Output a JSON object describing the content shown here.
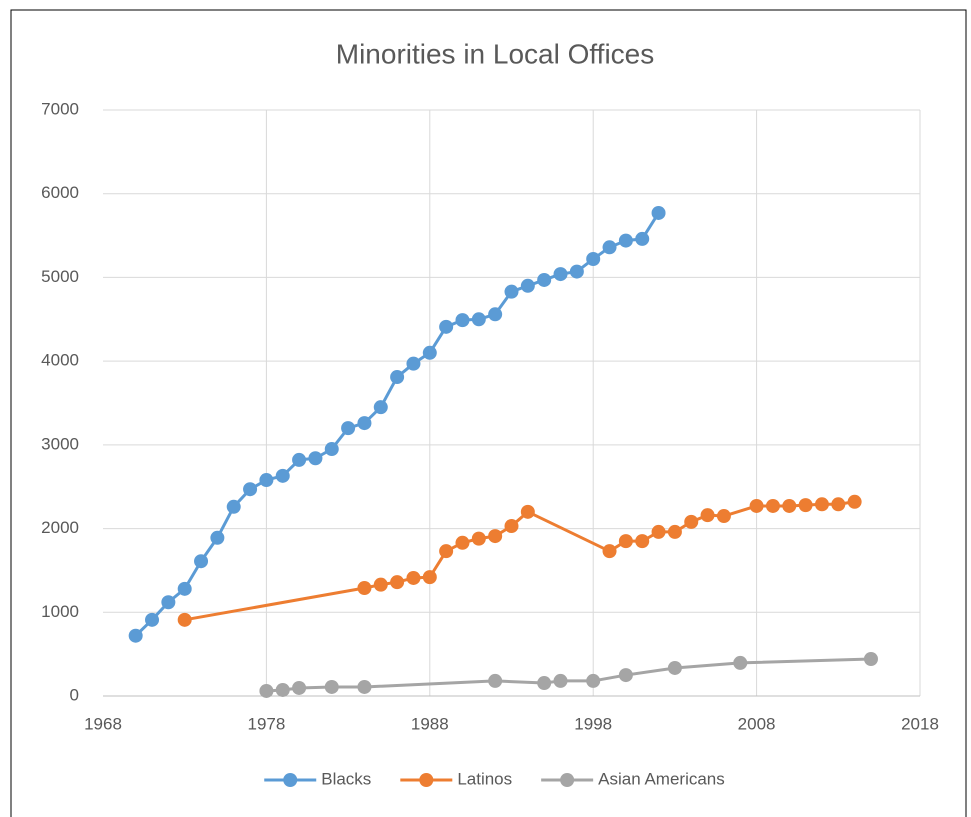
{
  "chart_data": {
    "type": "line",
    "title": "Minorities in Local Offices",
    "xlim": [
      1968,
      2018
    ],
    "xticks": [
      1968,
      1978,
      1988,
      1998,
      2008,
      2018
    ],
    "ylim": [
      0,
      7000
    ],
    "yticks": [
      0,
      1000,
      2000,
      3000,
      4000,
      5000,
      6000,
      7000
    ],
    "grid": true,
    "legend": "bottom",
    "series": [
      {
        "name": "Blacks",
        "color": "#5b9bd5",
        "x": [
          1970,
          1971,
          1972,
          1973,
          1974,
          1975,
          1976,
          1977,
          1978,
          1979,
          1980,
          1981,
          1982,
          1983,
          1984,
          1985,
          1986,
          1987,
          1988,
          1989,
          1990,
          1991,
          1992,
          1993,
          1994,
          1995,
          1996,
          1997,
          1998,
          1999,
          2000,
          2001,
          2002
        ],
        "values": [
          720,
          910,
          1120,
          1280,
          1610,
          1890,
          2260,
          2470,
          2580,
          2630,
          2820,
          2840,
          2950,
          3200,
          3260,
          3450,
          3810,
          3970,
          4100,
          4410,
          4490,
          4500,
          4560,
          4830,
          4900,
          4970,
          5040,
          5070,
          5220,
          5360,
          5440,
          5460,
          5770
        ]
      },
      {
        "name": "Latinos",
        "color": "#ed7d31",
        "x": [
          1973,
          1984,
          1985,
          1986,
          1987,
          1988,
          1989,
          1990,
          1991,
          1992,
          1993,
          1994,
          1999,
          2000,
          2001,
          2002,
          2003,
          2004,
          2005,
          2006,
          2008,
          2009,
          2010,
          2011,
          2012,
          2013,
          2014
        ],
        "values": [
          910,
          1290,
          1330,
          1360,
          1410,
          1420,
          1730,
          1830,
          1880,
          1910,
          2030,
          2200,
          1730,
          1850,
          1850,
          1960,
          1960,
          2080,
          2160,
          2150,
          2270,
          2270,
          2270,
          2280,
          2290,
          2290,
          2320
        ]
      },
      {
        "name": "Asian Americans",
        "color": "#a5a5a5",
        "x": [
          1978,
          1979,
          1980,
          1982,
          1984,
          1992,
          1995,
          1996,
          1998,
          2000,
          2003,
          2007,
          2015
        ],
        "values": [
          60,
          72,
          96,
          108,
          108,
          180,
          155,
          180,
          180,
          250,
          335,
          395,
          442
        ]
      }
    ]
  }
}
